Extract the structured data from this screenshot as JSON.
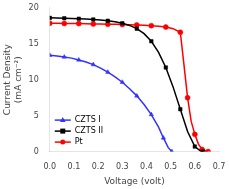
{
  "chart_data": {
    "type": "line",
    "xlabel": "Voltage (volt)",
    "ylabel": "Current Density\n(mA cm⁻²)",
    "xlim": [
      0.0,
      0.7
    ],
    "ylim": [
      0.0,
      20.0
    ],
    "xticks": [
      {
        "value": 0.0,
        "label": "0.0"
      },
      0.1,
      0.2,
      0.3,
      0.4,
      0.5,
      0.6,
      0.7
    ],
    "yticks": [
      0,
      5,
      10,
      15,
      20
    ],
    "grid": false,
    "legend": "lower left",
    "series": [
      {
        "name": "CZTS I",
        "color": "#3333ff",
        "marker": "triangle",
        "x": [
          0.0,
          0.03,
          0.06,
          0.09,
          0.12,
          0.15,
          0.18,
          0.21,
          0.24,
          0.27,
          0.3,
          0.33,
          0.36,
          0.39,
          0.42,
          0.45,
          0.47,
          0.49,
          0.505
        ],
        "values": [
          13.4,
          13.3,
          13.15,
          13.0,
          12.75,
          12.45,
          12.1,
          11.6,
          11.05,
          10.4,
          9.65,
          8.75,
          7.75,
          6.55,
          5.15,
          3.4,
          1.9,
          0.55,
          0.0
        ]
      },
      {
        "name": "CZTS II",
        "color": "#000000",
        "marker": "square",
        "x": [
          0.0,
          0.03,
          0.06,
          0.09,
          0.12,
          0.15,
          0.18,
          0.21,
          0.24,
          0.27,
          0.3,
          0.33,
          0.36,
          0.39,
          0.42,
          0.45,
          0.48,
          0.51,
          0.54,
          0.57,
          0.6,
          0.625,
          0.635
        ],
        "values": [
          18.6,
          18.58,
          18.55,
          18.52,
          18.48,
          18.44,
          18.38,
          18.3,
          18.2,
          18.06,
          17.85,
          17.55,
          17.1,
          16.4,
          15.35,
          13.8,
          11.7,
          9.0,
          5.9,
          2.8,
          0.7,
          0.05,
          0.0
        ]
      },
      {
        "name": "Pt",
        "color": "#ff0000",
        "marker": "circle",
        "x": [
          0.0,
          0.03,
          0.06,
          0.09,
          0.12,
          0.15,
          0.18,
          0.21,
          0.24,
          0.27,
          0.3,
          0.33,
          0.36,
          0.39,
          0.42,
          0.45,
          0.48,
          0.51,
          0.54,
          0.555,
          0.57,
          0.585,
          0.6,
          0.615,
          0.63,
          0.645,
          0.655
        ],
        "values": [
          17.85,
          17.84,
          17.83,
          17.82,
          17.8,
          17.78,
          17.76,
          17.74,
          17.72,
          17.7,
          17.68,
          17.65,
          17.62,
          17.58,
          17.52,
          17.44,
          17.32,
          17.1,
          16.6,
          12.1,
          7.5,
          4.2,
          2.4,
          1.05,
          0.3,
          0.05,
          0.0
        ]
      }
    ]
  }
}
